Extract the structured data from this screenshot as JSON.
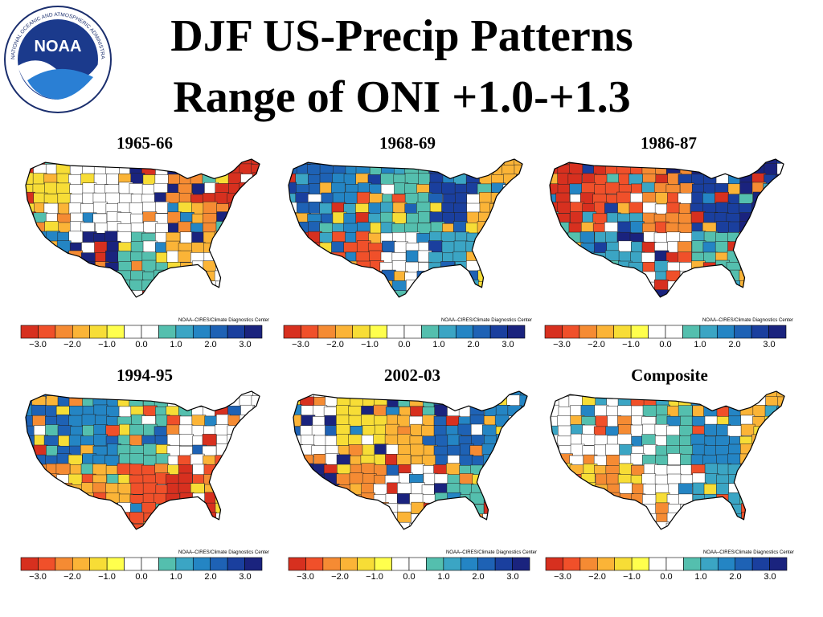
{
  "slide": {
    "title_line1": "DJF US-Precip Patterns",
    "title_line2": "Range of ONI +1.0-+1.3"
  },
  "logo": {
    "text": "NOAA",
    "ring_text": "NATIONAL OCEANIC AND ATMOSPHERIC ADMINISTRATION · U.S. DEPARTMENT OF COMMERCE"
  },
  "colorbar": {
    "credit": "NOAA–CIRES/Climate Diagnostics Center",
    "tick_labels": [
      "−3.0",
      "−2.0",
      "−1.0",
      "0.0",
      "1.0",
      "2.0",
      "3.0"
    ],
    "colors": [
      "#d7301f",
      "#f0502a",
      "#f58b33",
      "#fbb437",
      "#f7dd36",
      "#ffff4d",
      "#ffffff",
      "#ffffff",
      "#54bfae",
      "#3ba5c4",
      "#2485c4",
      "#1e62b5",
      "#1a3f9e",
      "#1a237e"
    ]
  },
  "panels": [
    {
      "label": "1965-66",
      "palette": [
        "#f7dd36",
        "#ffffff",
        "#ffffff",
        "#f58b33",
        "#d7301f",
        "#2485c4",
        "#1a237e",
        "#54bfae",
        "#fbb437",
        "#ffffff"
      ]
    },
    {
      "label": "1968-69",
      "palette": [
        "#1e62b5",
        "#2485c4",
        "#54bfae",
        "#1a3f9e",
        "#fbb437",
        "#d7301f",
        "#f0502a",
        "#ffffff",
        "#3ba5c4",
        "#f7dd36"
      ]
    },
    {
      "label": "1986-87",
      "palette": [
        "#d7301f",
        "#f0502a",
        "#f58b33",
        "#1a3f9e",
        "#1a237e",
        "#2485c4",
        "#3ba5c4",
        "#ffffff",
        "#54bfae",
        "#fbb437"
      ]
    },
    {
      "label": "1994-95",
      "palette": [
        "#1e62b5",
        "#2485c4",
        "#54bfae",
        "#ffffff",
        "#ffffff",
        "#f58b33",
        "#fbb437",
        "#f0502a",
        "#d7301f",
        "#f7dd36"
      ]
    },
    {
      "label": "2002-03",
      "palette": [
        "#ffffff",
        "#f7dd36",
        "#fbb437",
        "#1e62b5",
        "#2485c4",
        "#1a237e",
        "#f58b33",
        "#ffffff",
        "#54bfae",
        "#d7301f"
      ]
    },
    {
      "label": "Composite",
      "palette": [
        "#ffffff",
        "#ffffff",
        "#54bfae",
        "#2485c4",
        "#fbb437",
        "#f7dd36",
        "#f58b33",
        "#ffffff",
        "#3ba5c4",
        "#f0502a"
      ]
    }
  ]
}
